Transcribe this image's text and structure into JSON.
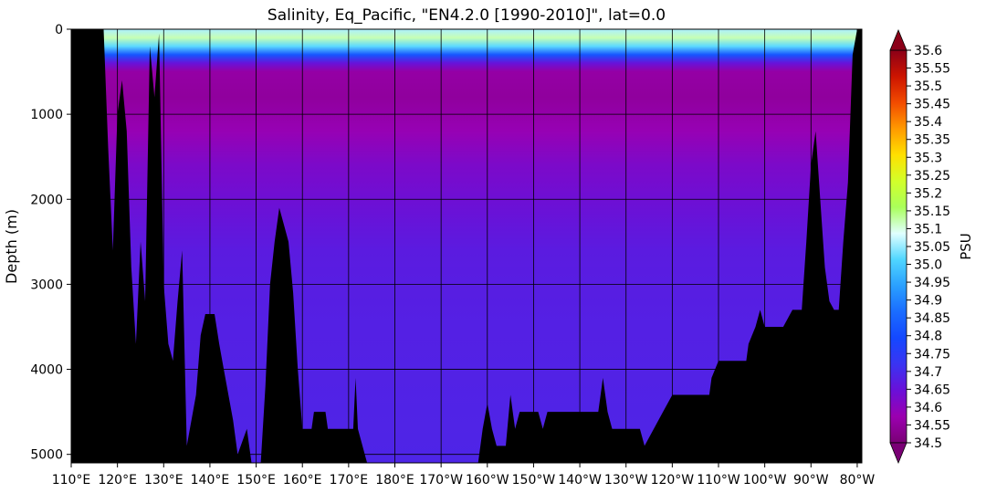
{
  "chart_data": {
    "type": "heatmap",
    "title": "Salinity, Eq_Pacific, \"EN4.2.0 [1990-2010]\", lat=0.0",
    "ylabel": "Depth (m)",
    "colorbar_label": "PSU",
    "ylim": [
      5100,
      0
    ],
    "y_ticks": [
      0,
      1000,
      2000,
      3000,
      4000,
      5000
    ],
    "x_ticks": [
      110,
      120,
      130,
      140,
      150,
      160,
      170,
      180,
      190,
      200,
      210,
      220,
      230,
      240,
      250,
      260,
      270,
      280
    ],
    "x_tick_labels": [
      "110°E",
      "120°E",
      "130°E",
      "140°E",
      "150°E",
      "160°E",
      "170°E",
      "180°E",
      "170°W",
      "160°W",
      "150°W",
      "140°W",
      "130°W",
      "120°W",
      "110°W",
      "100°W",
      "90°W",
      "80°W"
    ],
    "xlim": [
      110,
      281
    ],
    "clim": [
      34.5,
      35.6
    ],
    "colorbar_ticks": [
      "35.6",
      "35.55",
      "35.5",
      "35.45",
      "35.4",
      "35.35",
      "35.3",
      "35.25",
      "35.2",
      "35.15",
      "35.1",
      "35.05",
      "35.0",
      "34.95",
      "34.9",
      "34.85",
      "34.8",
      "34.75",
      "34.7",
      "34.65",
      "34.6",
      "34.55",
      "34.5"
    ],
    "grid": true,
    "colormap": [
      "#7a0075",
      "#9b00b0",
      "#6a10d8",
      "#3a34f2",
      "#1448ff",
      "#1a6cff",
      "#2aa0ff",
      "#50d6ff",
      "#e0ffff",
      "#aaff5a",
      "#d2ff2a",
      "#ffe000",
      "#ff9a00",
      "#f24b00",
      "#cc1400",
      "#8b0018"
    ],
    "depth_profile": [
      {
        "depth": 0,
        "salinity": 35.06
      },
      {
        "depth": 100,
        "salinity": 35.12
      },
      {
        "depth": 200,
        "salinity": 35.02
      },
      {
        "depth": 300,
        "salinity": 34.82
      },
      {
        "depth": 400,
        "salinity": 34.65
      },
      {
        "depth": 500,
        "salinity": 34.56
      },
      {
        "depth": 800,
        "salinity": 34.55
      },
      {
        "depth": 1200,
        "salinity": 34.58
      },
      {
        "depth": 1600,
        "salinity": 34.62
      },
      {
        "depth": 2000,
        "salinity": 34.64
      },
      {
        "depth": 2600,
        "salinity": 34.67
      },
      {
        "depth": 3500,
        "salinity": 34.68
      },
      {
        "depth": 5100,
        "salinity": 34.69
      }
    ],
    "seafloor": [
      {
        "lon": 110,
        "depth": 0
      },
      {
        "lon": 117,
        "depth": 0
      },
      {
        "lon": 118,
        "depth": 1400
      },
      {
        "lon": 119,
        "depth": 2600
      },
      {
        "lon": 120,
        "depth": 1000
      },
      {
        "lon": 121,
        "depth": 600
      },
      {
        "lon": 122,
        "depth": 1200
      },
      {
        "lon": 123,
        "depth": 2800
      },
      {
        "lon": 124,
        "depth": 3700
      },
      {
        "lon": 125,
        "depth": 2500
      },
      {
        "lon": 126,
        "depth": 3200
      },
      {
        "lon": 127,
        "depth": 200
      },
      {
        "lon": 128,
        "depth": 800
      },
      {
        "lon": 129,
        "depth": 50
      },
      {
        "lon": 130,
        "depth": 3000
      },
      {
        "lon": 131,
        "depth": 3700
      },
      {
        "lon": 132,
        "depth": 3900
      },
      {
        "lon": 133,
        "depth": 3200
      },
      {
        "lon": 134,
        "depth": 2600
      },
      {
        "lon": 135,
        "depth": 4900
      },
      {
        "lon": 137,
        "depth": 4300
      },
      {
        "lon": 138,
        "depth": 3600
      },
      {
        "lon": 139,
        "depth": 3350
      },
      {
        "lon": 141,
        "depth": 3350
      },
      {
        "lon": 142,
        "depth": 3700
      },
      {
        "lon": 143,
        "depth": 4000
      },
      {
        "lon": 145,
        "depth": 4600
      },
      {
        "lon": 146,
        "depth": 5000
      },
      {
        "lon": 148,
        "depth": 4700
      },
      {
        "lon": 149,
        "depth": 5100
      },
      {
        "lon": 151,
        "depth": 5100
      },
      {
        "lon": 152,
        "depth": 4200
      },
      {
        "lon": 153,
        "depth": 3000
      },
      {
        "lon": 154,
        "depth": 2500
      },
      {
        "lon": 155,
        "depth": 2100
      },
      {
        "lon": 156,
        "depth": 2300
      },
      {
        "lon": 157,
        "depth": 2500
      },
      {
        "lon": 158,
        "depth": 3100
      },
      {
        "lon": 159,
        "depth": 4000
      },
      {
        "lon": 160,
        "depth": 4700
      },
      {
        "lon": 162,
        "depth": 4700
      },
      {
        "lon": 162.5,
        "depth": 4500
      },
      {
        "lon": 165,
        "depth": 4500
      },
      {
        "lon": 165.5,
        "depth": 4700
      },
      {
        "lon": 171,
        "depth": 4700
      },
      {
        "lon": 171.5,
        "depth": 4100
      },
      {
        "lon": 172,
        "depth": 4700
      },
      {
        "lon": 174,
        "depth": 5100
      },
      {
        "lon": 198,
        "depth": 5100
      },
      {
        "lon": 199,
        "depth": 4700
      },
      {
        "lon": 200,
        "depth": 4400
      },
      {
        "lon": 201,
        "depth": 4700
      },
      {
        "lon": 202,
        "depth": 4900
      },
      {
        "lon": 204,
        "depth": 4900
      },
      {
        "lon": 205,
        "depth": 4300
      },
      {
        "lon": 206,
        "depth": 4700
      },
      {
        "lon": 207,
        "depth": 4500
      },
      {
        "lon": 211,
        "depth": 4500
      },
      {
        "lon": 212,
        "depth": 4700
      },
      {
        "lon": 213,
        "depth": 4500
      },
      {
        "lon": 224,
        "depth": 4500
      },
      {
        "lon": 225,
        "depth": 4100
      },
      {
        "lon": 226,
        "depth": 4500
      },
      {
        "lon": 227,
        "depth": 4700
      },
      {
        "lon": 233,
        "depth": 4700
      },
      {
        "lon": 234,
        "depth": 4900
      },
      {
        "lon": 236,
        "depth": 4700
      },
      {
        "lon": 238,
        "depth": 4500
      },
      {
        "lon": 240,
        "depth": 4300
      },
      {
        "lon": 248,
        "depth": 4300
      },
      {
        "lon": 248.5,
        "depth": 4100
      },
      {
        "lon": 250,
        "depth": 3900
      },
      {
        "lon": 256,
        "depth": 3900
      },
      {
        "lon": 256.5,
        "depth": 3700
      },
      {
        "lon": 258,
        "depth": 3500
      },
      {
        "lon": 259,
        "depth": 3300
      },
      {
        "lon": 260,
        "depth": 3500
      },
      {
        "lon": 264,
        "depth": 3500
      },
      {
        "lon": 266,
        "depth": 3300
      },
      {
        "lon": 268,
        "depth": 3300
      },
      {
        "lon": 269,
        "depth": 2500
      },
      {
        "lon": 270,
        "depth": 1600
      },
      {
        "lon": 271,
        "depth": 1200
      },
      {
        "lon": 272,
        "depth": 2000
      },
      {
        "lon": 273,
        "depth": 2800
      },
      {
        "lon": 274,
        "depth": 3200
      },
      {
        "lon": 275,
        "depth": 3300
      },
      {
        "lon": 276,
        "depth": 3300
      },
      {
        "lon": 277,
        "depth": 2500
      },
      {
        "lon": 278,
        "depth": 1800
      },
      {
        "lon": 279,
        "depth": 300
      },
      {
        "lon": 280,
        "depth": 0
      },
      {
        "lon": 281,
        "depth": 0
      }
    ]
  }
}
